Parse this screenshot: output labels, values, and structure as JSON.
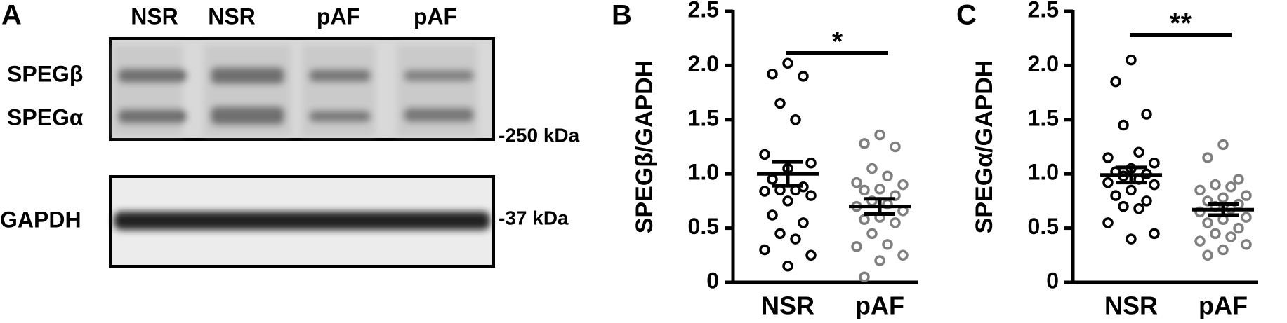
{
  "blot": {
    "panel_label": "A",
    "lanes": [
      "NSR",
      "NSR",
      "pAF",
      "pAF"
    ],
    "bands": [
      "SPEGβ",
      "SPEGα",
      "GAPDH"
    ],
    "markers": [
      "-250 kDa",
      "-37 kDa"
    ]
  },
  "chart_data": [
    {
      "type": "dot",
      "panel_label": "B",
      "ylabel": "SPEGβ/GAPDH",
      "categories": [
        "NSR",
        "pAF"
      ],
      "groups": [
        {
          "color": "#000000",
          "values": [
            2.02,
            1.92,
            1.9,
            1.65,
            1.5,
            1.18,
            1.1,
            1.05,
            0.95,
            0.88,
            0.85,
            0.85,
            0.84,
            0.8,
            0.75,
            0.62,
            0.55,
            0.45,
            0.4,
            0.3,
            0.25,
            0.15
          ],
          "mean": 1.0,
          "sem": 0.11
        },
        {
          "color": "#7f7f7f",
          "values": [
            1.36,
            1.28,
            1.25,
            1.05,
            0.98,
            0.92,
            0.9,
            0.86,
            0.85,
            0.8,
            0.75,
            0.72,
            0.7,
            0.66,
            0.6,
            0.58,
            0.55,
            0.45,
            0.35,
            0.33,
            0.25,
            0.2,
            0.05
          ],
          "mean": 0.7,
          "sem": 0.07
        }
      ],
      "ylim": [
        0,
        2.5
      ],
      "yticks": [
        0,
        0.5,
        {
          "value": 1,
          "label": "1.0"
        },
        1.5,
        {
          "value": 2,
          "label": "2.0"
        },
        2.5
      ],
      "significance": "*"
    },
    {
      "type": "dot",
      "panel_label": "C",
      "ylabel": "SPEGα/GAPDH",
      "categories": [
        "NSR",
        "pAF"
      ],
      "groups": [
        {
          "color": "#000000",
          "values": [
            2.05,
            1.85,
            1.55,
            1.45,
            1.2,
            1.15,
            1.1,
            1.05,
            1.02,
            1.0,
            0.98,
            0.95,
            0.92,
            0.9,
            0.85,
            0.8,
            0.75,
            0.7,
            0.68,
            0.55,
            0.45,
            0.4
          ],
          "mean": 0.99,
          "sem": 0.07
        },
        {
          "color": "#7f7f7f",
          "values": [
            1.27,
            1.15,
            0.95,
            0.9,
            0.88,
            0.85,
            0.8,
            0.78,
            0.75,
            0.72,
            0.7,
            0.68,
            0.65,
            0.6,
            0.58,
            0.55,
            0.5,
            0.45,
            0.42,
            0.38,
            0.35,
            0.3,
            0.25
          ],
          "mean": 0.67,
          "sem": 0.05
        }
      ],
      "ylim": [
        0,
        2.5
      ],
      "yticks": [
        0,
        0.5,
        {
          "value": 1,
          "label": "1.0"
        },
        1.5,
        {
          "value": 2,
          "label": "2.0"
        },
        2.5
      ],
      "significance": "**"
    }
  ]
}
